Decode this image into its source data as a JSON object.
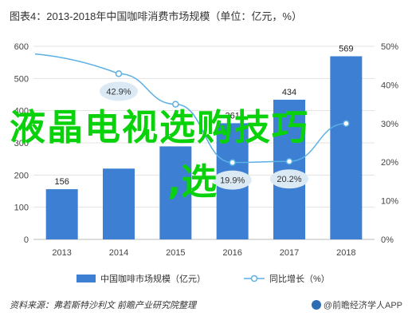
{
  "title": "图表4：2013-2018年中国咖啡消费市场规模（单位：亿元，%）",
  "footer_source": "资料来源：弗若斯特沙利文  前瞻产业研究院整理",
  "brand": "@前瞻经济学人APP",
  "overlay_text_line1": "液晶电视选购技巧",
  "overlay_text_line2": ",选",
  "colors": {
    "bar": "#3d7fd2",
    "line": "#5bb0e4",
    "bubble": "#dbe9f5",
    "overlay": "#0ad20a"
  },
  "chart_data": {
    "type": "bar",
    "categories": [
      "2013",
      "2014",
      "2015",
      "2016",
      "2017",
      "2018"
    ],
    "series": [
      {
        "name": "中国咖啡市场规模（亿元）",
        "type": "bar",
        "values": [
          156,
          220,
          289,
          361,
          434,
          569
        ],
        "labels": [
          "156",
          "",
          "",
          "361",
          "434",
          "569"
        ]
      },
      {
        "name": "同比增长（%）",
        "type": "line",
        "axis": "right",
        "values": [
          null,
          42.9,
          35.0,
          19.9,
          20.2,
          30.0
        ],
        "labels": [
          "",
          "42.9%",
          "",
          "19.9%",
          "20.2%",
          ""
        ]
      }
    ],
    "y_left": {
      "min": 0,
      "max": 600,
      "ticks": [
        "0",
        "100",
        "200",
        "300",
        "400",
        "500",
        "600"
      ]
    },
    "y_right": {
      "min": 0,
      "max": 50,
      "ticks": [
        "0%",
        "10%",
        "20%",
        "30%",
        "40%",
        "50%"
      ]
    },
    "grid": true,
    "legend_position": "bottom"
  }
}
